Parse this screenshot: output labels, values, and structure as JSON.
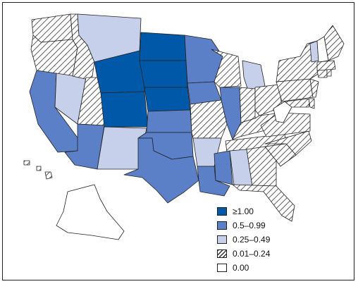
{
  "colors": {
    "very_high": "#0059a8",
    "high": "#5b80c8",
    "medium": "#c6d0eb",
    "low": "hatched",
    "none": "#ffffff",
    "outline": "#222222"
  },
  "legend": {
    "items": [
      {
        "label": "≥1.00",
        "fill": "very_high"
      },
      {
        "label": "0.5–0.99",
        "fill": "high"
      },
      {
        "label": "0.25–0.49",
        "fill": "medium"
      },
      {
        "label": "0.01–0.24",
        "fill": "low"
      },
      {
        "label": "0.00",
        "fill": "none"
      }
    ]
  },
  "states": [
    {
      "name": "Washington",
      "category": "low"
    },
    {
      "name": "Oregon",
      "category": "low"
    },
    {
      "name": "California",
      "category": "high"
    },
    {
      "name": "Nevada",
      "category": "medium"
    },
    {
      "name": "Idaho",
      "category": "low"
    },
    {
      "name": "Montana",
      "category": "medium"
    },
    {
      "name": "Wyoming",
      "category": "very_high"
    },
    {
      "name": "Utah",
      "category": "low"
    },
    {
      "name": "Arizona",
      "category": "high"
    },
    {
      "name": "Colorado",
      "category": "very_high"
    },
    {
      "name": "New Mexico",
      "category": "medium"
    },
    {
      "name": "North Dakota",
      "category": "very_high"
    },
    {
      "name": "South Dakota",
      "category": "very_high"
    },
    {
      "name": "Nebraska",
      "category": "very_high"
    },
    {
      "name": "Kansas",
      "category": "high"
    },
    {
      "name": "Oklahoma",
      "category": "high"
    },
    {
      "name": "Texas",
      "category": "high"
    },
    {
      "name": "Minnesota",
      "category": "high"
    },
    {
      "name": "Iowa",
      "category": "high"
    },
    {
      "name": "Missouri",
      "category": "low"
    },
    {
      "name": "Arkansas",
      "category": "medium"
    },
    {
      "name": "Louisiana",
      "category": "high"
    },
    {
      "name": "Wisconsin",
      "category": "low"
    },
    {
      "name": "Illinois",
      "category": "high"
    },
    {
      "name": "Michigan",
      "category": "medium"
    },
    {
      "name": "Indiana",
      "category": "low"
    },
    {
      "name": "Ohio",
      "category": "low"
    },
    {
      "name": "Kentucky",
      "category": "low"
    },
    {
      "name": "Tennessee",
      "category": "low"
    },
    {
      "name": "Mississippi",
      "category": "high"
    },
    {
      "name": "Alabama",
      "category": "medium"
    },
    {
      "name": "Georgia",
      "category": "low"
    },
    {
      "name": "Florida",
      "category": "low"
    },
    {
      "name": "South Carolina",
      "category": "low"
    },
    {
      "name": "North Carolina",
      "category": "low"
    },
    {
      "name": "Virginia",
      "category": "low"
    },
    {
      "name": "West Virginia",
      "category": "none"
    },
    {
      "name": "Maryland",
      "category": "low"
    },
    {
      "name": "Delaware",
      "category": "low"
    },
    {
      "name": "Pennsylvania",
      "category": "low"
    },
    {
      "name": "New Jersey",
      "category": "low"
    },
    {
      "name": "New York",
      "category": "low"
    },
    {
      "name": "Connecticut",
      "category": "low"
    },
    {
      "name": "Rhode Island",
      "category": "low"
    },
    {
      "name": "Massachusetts",
      "category": "low"
    },
    {
      "name": "Vermont",
      "category": "medium"
    },
    {
      "name": "New Hampshire",
      "category": "none"
    },
    {
      "name": "Maine",
      "category": "low"
    },
    {
      "name": "Alaska",
      "category": "none"
    },
    {
      "name": "Hawaii",
      "category": "low"
    }
  ]
}
